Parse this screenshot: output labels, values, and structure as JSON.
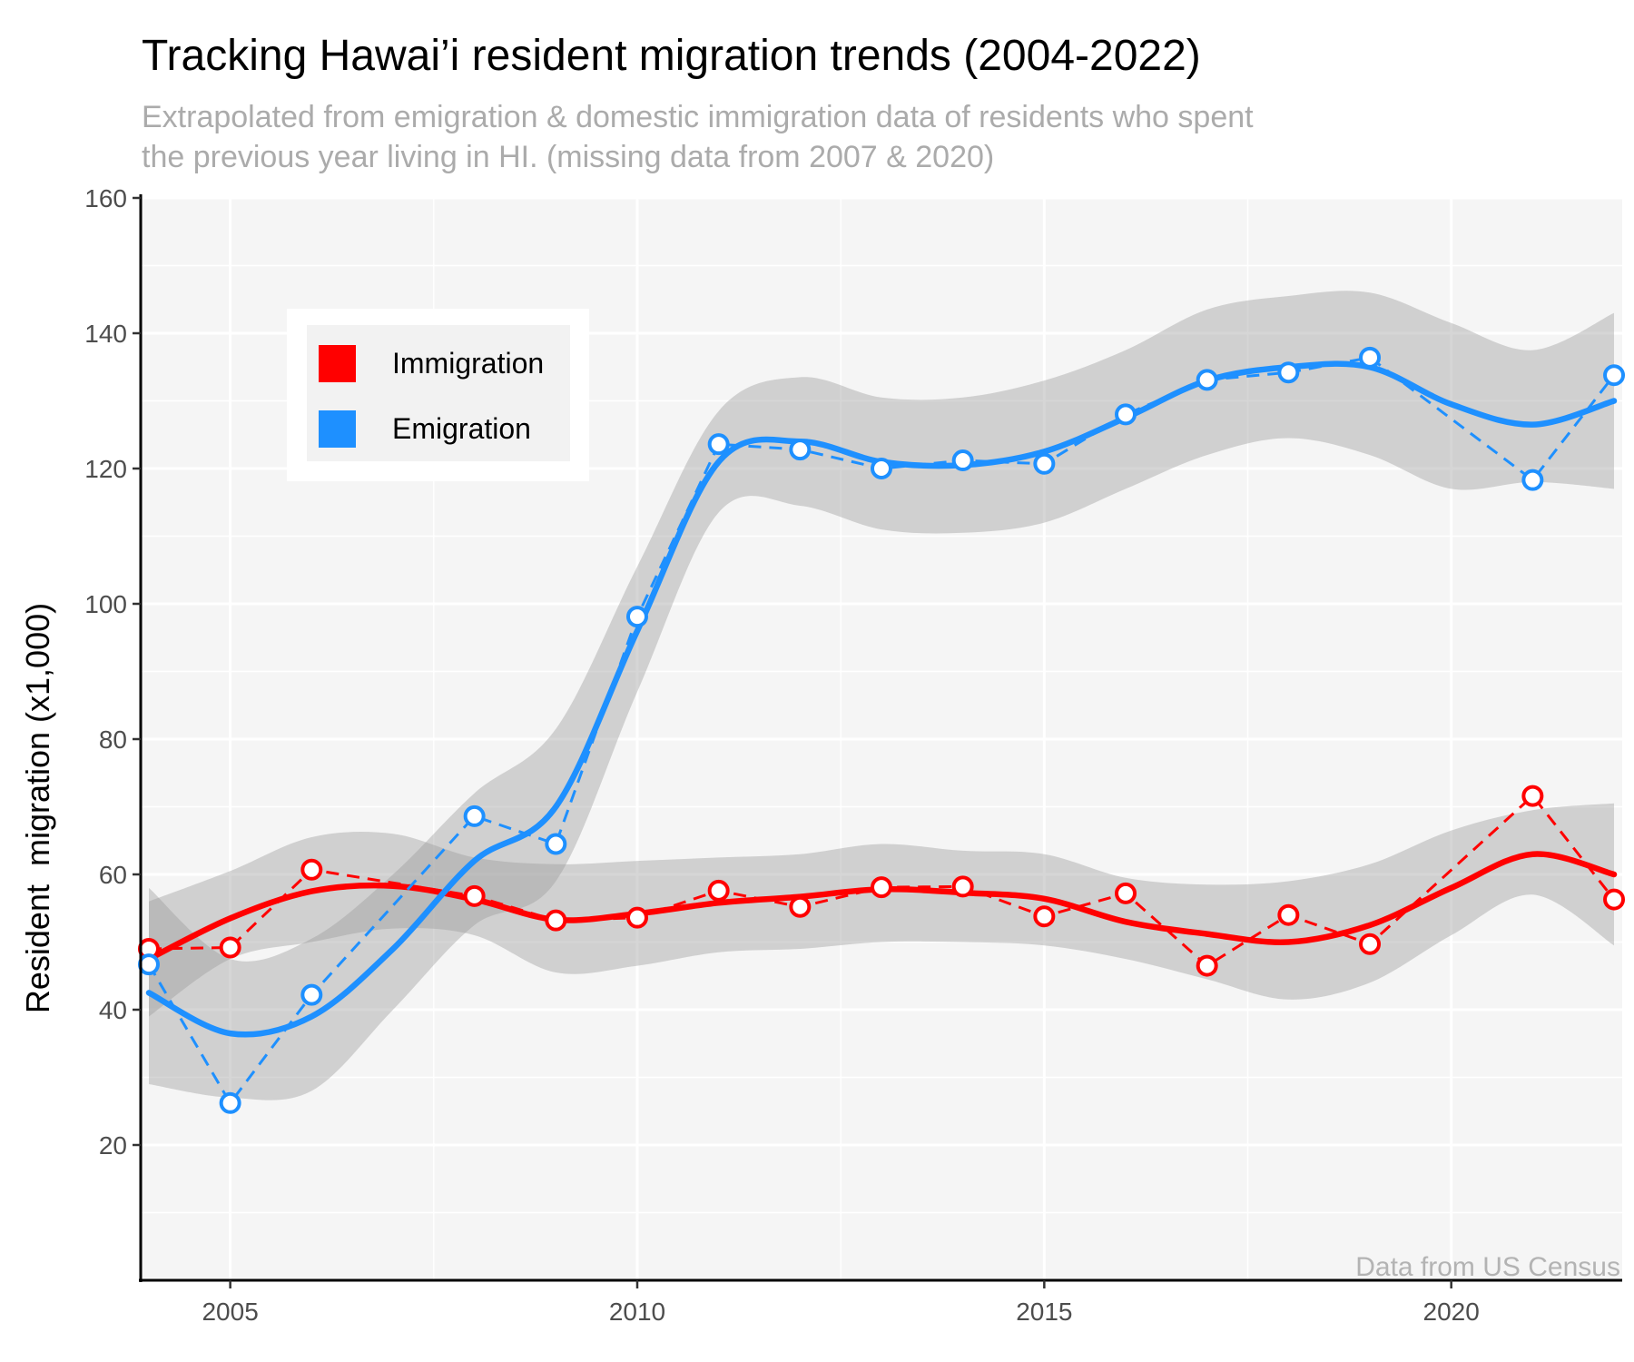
{
  "chart_data": {
    "type": "line",
    "title": "Tracking Hawai’i resident migration trends (2004-2022)",
    "subtitle_lines": [
      "Extrapolated from emigration & domestic immigration data of residents who spent",
      "the previous year living in HI. (missing data from 2007 & 2020)"
    ],
    "ylabel": "Resident  migration (x1,000)",
    "xlabel": "",
    "caption": "Data from US Census",
    "xlim": [
      2003.9,
      2022.1
    ],
    "ylim": [
      0,
      160
    ],
    "x_ticks": [
      2005,
      2010,
      2015,
      2020
    ],
    "y_ticks": [
      20,
      40,
      60,
      80,
      100,
      120,
      140,
      160
    ],
    "grid": true,
    "legend_position": "top-left (inside plot)",
    "series": [
      {
        "name": "Immigration",
        "color": "#ff0000",
        "x": [
          2004,
          2005,
          2006,
          2008,
          2009,
          2010,
          2011,
          2012,
          2013,
          2014,
          2015,
          2016,
          2017,
          2018,
          2019,
          2021,
          2022
        ],
        "values": [
          49,
          49.2,
          60.7,
          56.8,
          53.2,
          53.6,
          57.6,
          55.2,
          58.1,
          58.2,
          53.8,
          57.2,
          46.5,
          54,
          49.7,
          71.6,
          56.3
        ],
        "smooth": {
          "x": [
            2004,
            2005,
            2006,
            2007,
            2008,
            2009,
            2010,
            2011,
            2012,
            2013,
            2014,
            2015,
            2016,
            2017,
            2018,
            2019,
            2020,
            2021,
            2022
          ],
          "y": [
            47.5,
            53.5,
            57.5,
            58.3,
            56.3,
            53.3,
            54.2,
            55.8,
            56.7,
            57.8,
            57.3,
            56.4,
            53.0,
            51.2,
            50.0,
            52.5,
            58.0,
            63.0,
            60.0
          ],
          "lower": [
            39,
            47.5,
            50,
            52,
            51,
            45.5,
            46.5,
            48.5,
            49,
            50,
            50,
            49.5,
            47.5,
            44.5,
            41.5,
            44,
            51,
            57,
            49.5
          ],
          "upper": [
            56,
            60.5,
            65.5,
            66,
            62.5,
            61.5,
            62,
            62.5,
            63,
            64.5,
            63.5,
            63,
            59.5,
            58.5,
            59,
            61.5,
            66.5,
            69.5,
            70.5
          ]
        }
      },
      {
        "name": "Emigration",
        "color": "#1e90ff",
        "x": [
          2004,
          2005,
          2006,
          2008,
          2009,
          2010,
          2011,
          2012,
          2013,
          2014,
          2015,
          2016,
          2017,
          2018,
          2019,
          2021,
          2022
        ],
        "values": [
          46.7,
          26.2,
          42.2,
          68.6,
          64.5,
          98.1,
          123.6,
          122.8,
          120,
          121.2,
          120.7,
          128,
          133.1,
          134.2,
          136.4,
          118.3,
          133.8
        ],
        "smooth": {
          "x": [
            2004,
            2005,
            2006,
            2007,
            2008,
            2009,
            2010,
            2011,
            2012,
            2013,
            2014,
            2015,
            2016,
            2017,
            2018,
            2019,
            2020,
            2021,
            2022
          ],
          "y": [
            42.5,
            36.5,
            39.0,
            49.0,
            62.0,
            70.0,
            96.0,
            121.0,
            124.0,
            121.0,
            120.5,
            122.5,
            127.5,
            133.0,
            135.0,
            135.0,
            129.5,
            126.5,
            130.0
          ],
          "lower": [
            29,
            27,
            28,
            40,
            52.5,
            59,
            87,
            113.5,
            114.5,
            111,
            110.5,
            112,
            117,
            122,
            124.5,
            122,
            117,
            118,
            117
          ],
          "upper": [
            58,
            47.5,
            50.5,
            60,
            72,
            81.5,
            105.5,
            128.5,
            133.5,
            130.5,
            130.5,
            133,
            137.5,
            143.5,
            145.5,
            146,
            141.5,
            137.5,
            143
          ]
        }
      }
    ]
  }
}
